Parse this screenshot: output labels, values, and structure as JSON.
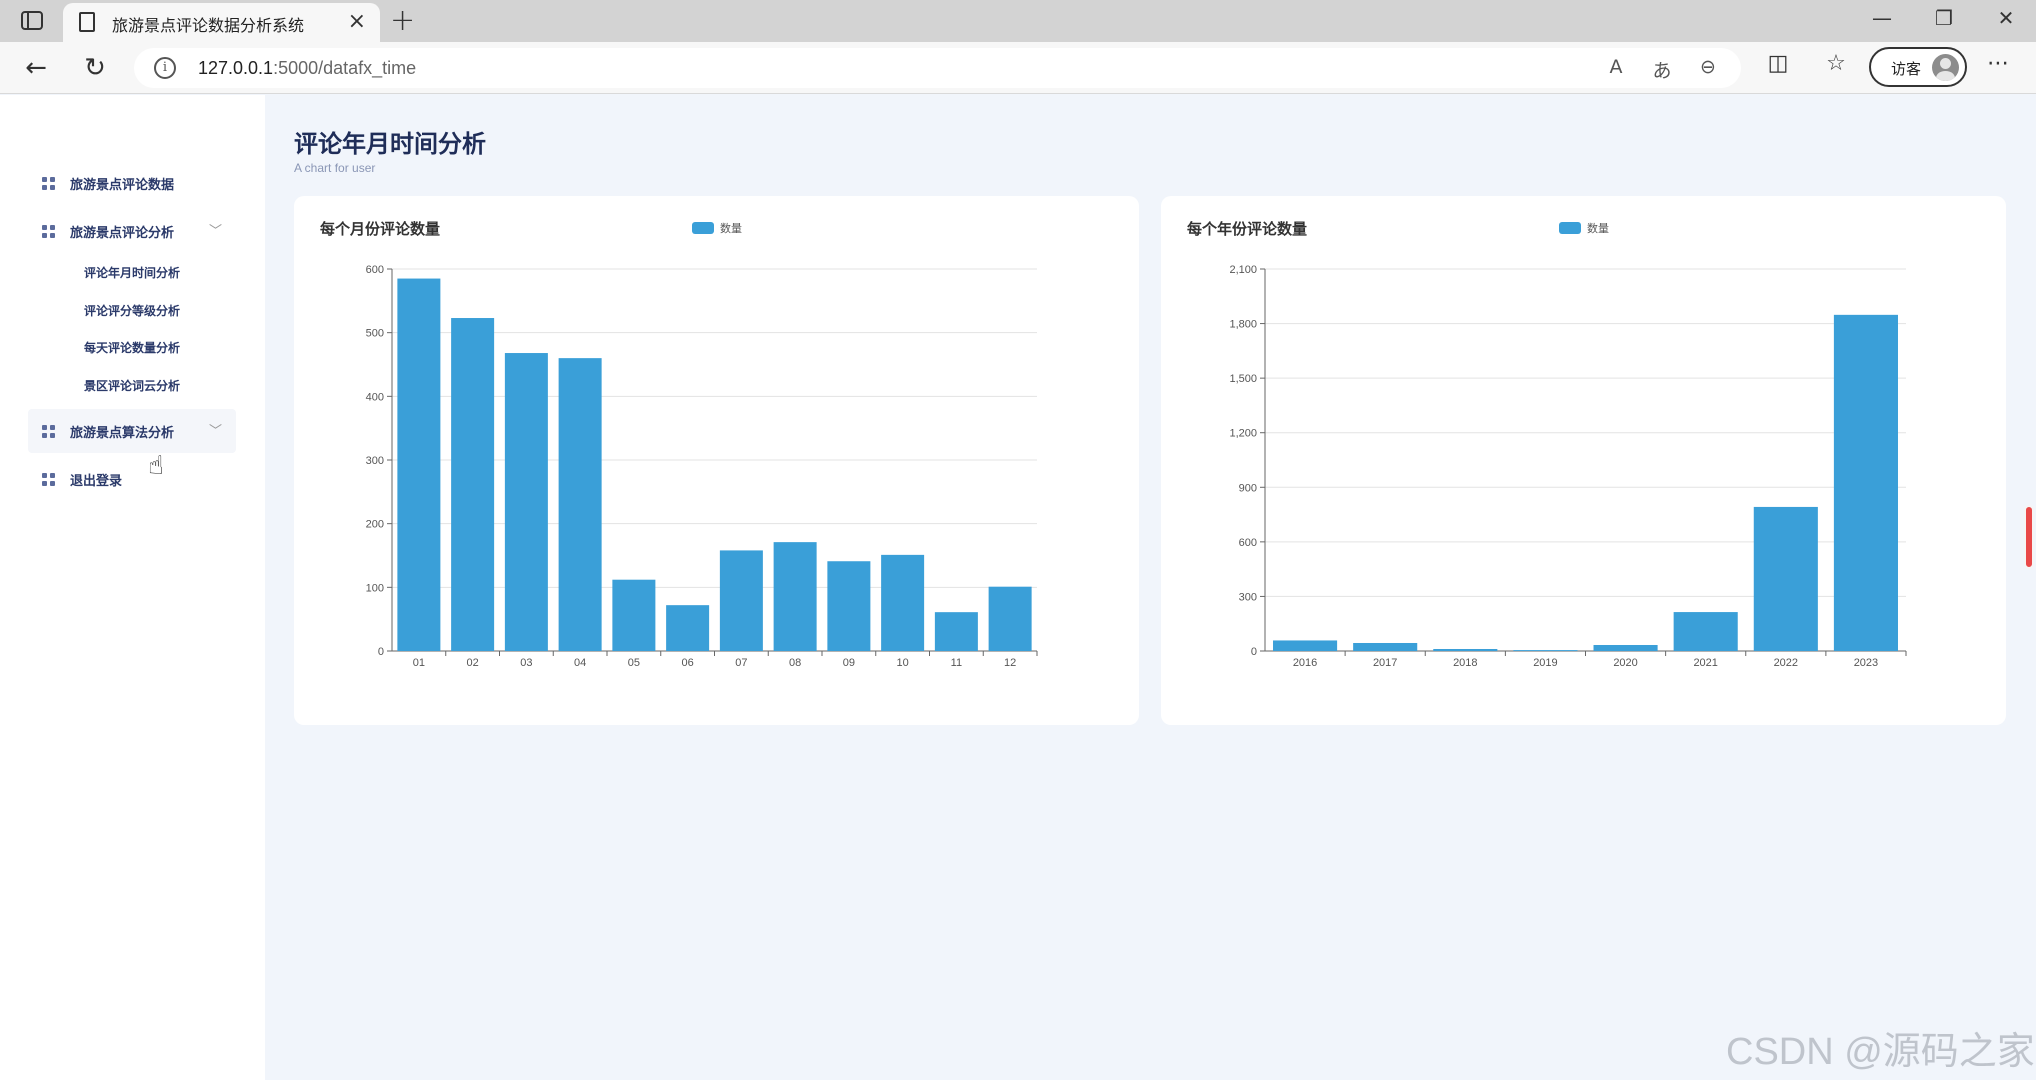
{
  "browser": {
    "tab_title": "旅游景点评论数据分析系统",
    "url_host": "127.0.0.1",
    "url_path": ":5000/datafx_time",
    "profile_label": "访客",
    "icons": [
      "sidebar-toggle-icon",
      "document-icon",
      "close-icon",
      "plus-icon",
      "minimize-icon",
      "restore-icon",
      "window-close-icon",
      "back-arrow-icon",
      "reload-icon",
      "info-icon",
      "read-aloud-icon",
      "translate-icon",
      "zoom-out-icon",
      "split-screen-icon",
      "favorites-icon",
      "more-icon"
    ]
  },
  "sidebar": {
    "items": [
      {
        "label": "旅游景点评论数据"
      },
      {
        "label": "旅游景点评论分析"
      },
      {
        "label": "旅游景点算法分析"
      },
      {
        "label": "退出登录"
      }
    ],
    "sub_items": [
      {
        "label": "评论年月时间分析"
      },
      {
        "label": "评论评分等级分析"
      },
      {
        "label": "每天评论数量分析"
      },
      {
        "label": "景区评论词云分析"
      }
    ]
  },
  "main": {
    "title": "评论年月时间分析",
    "subtitle": "A chart for user"
  },
  "colors": {
    "bar": "#3a9fd8",
    "title": "#1f2d58",
    "sidebar_text": "#2b3a6a"
  },
  "watermark": "CSDN @源码之家",
  "chart_data": [
    {
      "type": "bar",
      "title": "每个月份评论数量",
      "categories": [
        "01",
        "02",
        "03",
        "04",
        "05",
        "06",
        "07",
        "08",
        "09",
        "10",
        "11",
        "12"
      ],
      "series": [
        {
          "name": "数量",
          "values": [
            585,
            523,
            468,
            460,
            112,
            72,
            158,
            171,
            141,
            151,
            61,
            101
          ]
        }
      ],
      "ylim": [
        0,
        600
      ],
      "yticks": [
        0,
        100,
        200,
        300,
        400,
        500,
        600
      ],
      "ytick_labels": [
        "0",
        "100",
        "200",
        "300",
        "400",
        "500",
        "600"
      ],
      "grid": true,
      "legend": "top"
    },
    {
      "type": "bar",
      "title": "每个年份评论数量",
      "categories": [
        "2016",
        "2017",
        "2018",
        "2019",
        "2020",
        "2021",
        "2022",
        "2023"
      ],
      "series": [
        {
          "name": "数量",
          "values": [
            58,
            44,
            11,
            5,
            33,
            214,
            792,
            1848
          ]
        }
      ],
      "ylim": [
        0,
        2100
      ],
      "yticks": [
        0,
        300,
        600,
        900,
        1200,
        1500,
        1800,
        2100
      ],
      "ytick_labels": [
        "0",
        "300",
        "600",
        "900",
        "1,200",
        "1,500",
        "1,800",
        "2,100"
      ],
      "grid": true,
      "legend": "top"
    }
  ]
}
